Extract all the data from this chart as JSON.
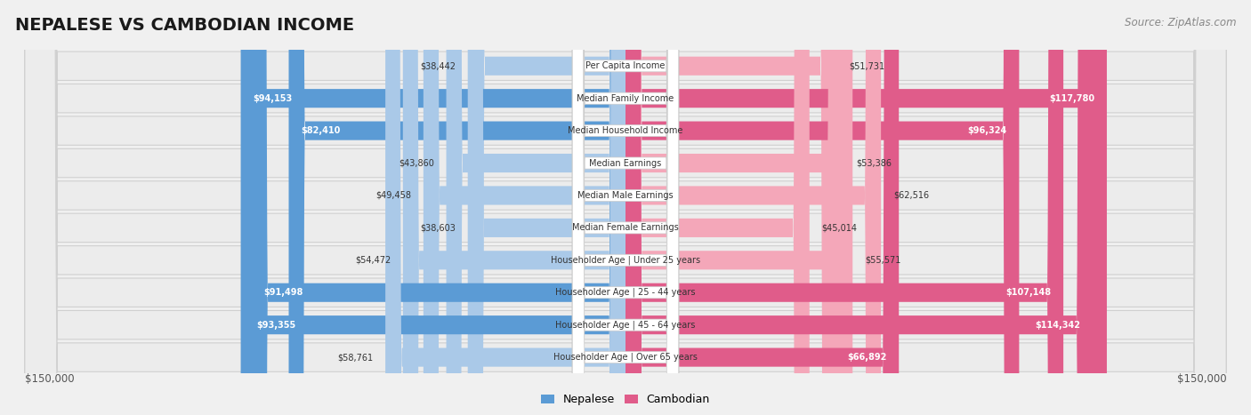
{
  "title": "NEPALESE VS CAMBODIAN INCOME",
  "source": "Source: ZipAtlas.com",
  "categories": [
    "Per Capita Income",
    "Median Family Income",
    "Median Household Income",
    "Median Earnings",
    "Median Male Earnings",
    "Median Female Earnings",
    "Householder Age | Under 25 years",
    "Householder Age | 25 - 44 years",
    "Householder Age | 45 - 64 years",
    "Householder Age | Over 65 years"
  ],
  "nepalese": [
    38442,
    94153,
    82410,
    43860,
    49458,
    38603,
    54472,
    91498,
    93355,
    58761
  ],
  "cambodian": [
    51731,
    117780,
    96324,
    53386,
    62516,
    45014,
    55571,
    107148,
    114342,
    66892
  ],
  "nepalese_labels": [
    "$38,442",
    "$94,153",
    "$82,410",
    "$43,860",
    "$49,458",
    "$38,603",
    "$54,472",
    "$91,498",
    "$93,355",
    "$58,761"
  ],
  "cambodian_labels": [
    "$51,731",
    "$117,780",
    "$96,324",
    "$53,386",
    "$62,516",
    "$45,014",
    "$55,571",
    "$107,148",
    "$114,342",
    "$66,892"
  ],
  "nepalese_color_light": "#aac9e8",
  "nepalese_color_dark": "#5b9bd5",
  "cambodian_color_light": "#f4a7b9",
  "cambodian_color_dark": "#e05c8a",
  "max_value": 150000,
  "legend_nepalese": "Nepalese",
  "legend_cambodian": "Cambodian",
  "background_color": "#f0f0f0",
  "row_bg_color": "#e8e8e8",
  "label_threshold": 0.42,
  "axis_label": "$150,000"
}
